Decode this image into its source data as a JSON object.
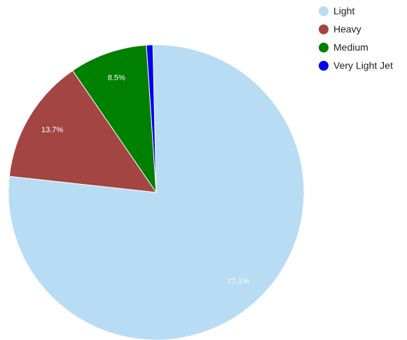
{
  "chart_data": {
    "type": "pie",
    "title": "",
    "slices": [
      {
        "label": "Light",
        "value": 77.1,
        "value_label": "77.1%",
        "color": "#b8dcf4"
      },
      {
        "label": "Heavy",
        "value": 13.7,
        "value_label": "13.7%",
        "color": "#a34543"
      },
      {
        "label": "Medium",
        "value": 8.5,
        "value_label": "8.5%",
        "color": "#008000"
      },
      {
        "label": "Very Light Jet",
        "value": 0.7,
        "value_label": "",
        "color": "#0000ee"
      }
    ],
    "legend": {
      "placement": "top-right",
      "entries": [
        "Light",
        "Heavy",
        "Medium",
        "Very Light Jet"
      ]
    }
  }
}
